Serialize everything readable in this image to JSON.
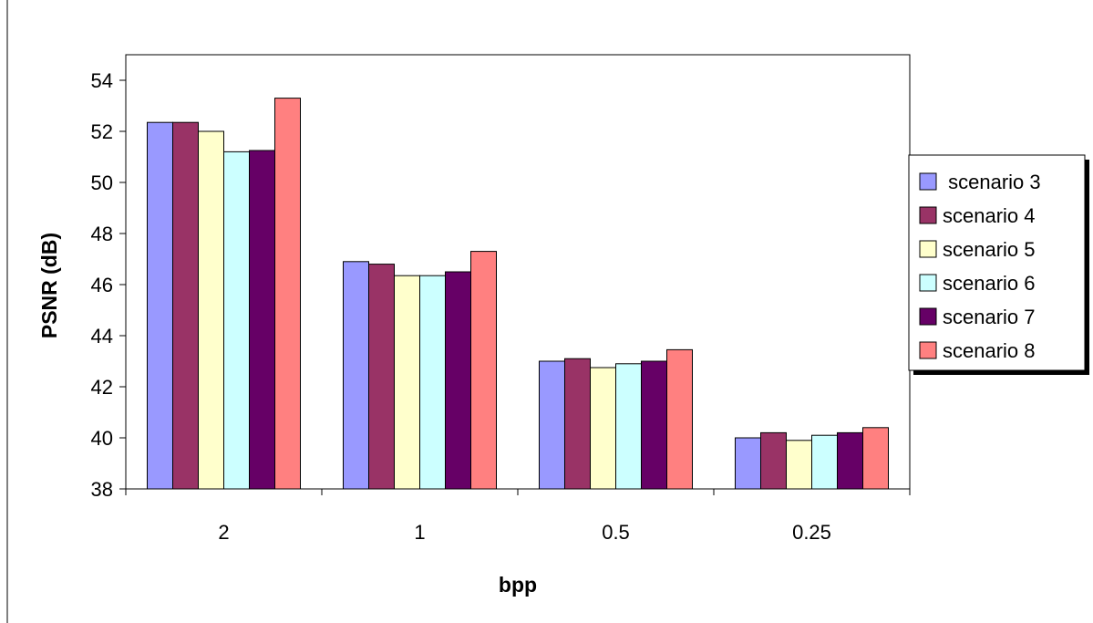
{
  "chart_data": {
    "type": "bar",
    "title": "",
    "xlabel": "bpp",
    "ylabel": "PSNR (dB)",
    "categories": [
      "2",
      "1",
      "0.5",
      "0.25"
    ],
    "ylim": [
      38,
      55
    ],
    "yticks": [
      38,
      40,
      42,
      44,
      46,
      48,
      50,
      52,
      54
    ],
    "grid": false,
    "legend_position": "right",
    "series": [
      {
        "name": " scenario 3",
        "color": "#9999ff",
        "values": [
          52.35,
          46.9,
          43.0,
          40.0
        ]
      },
      {
        "name": "scenario 4",
        "color": "#993366",
        "values": [
          52.35,
          46.8,
          43.1,
          40.2
        ]
      },
      {
        "name": "scenario 5",
        "color": "#ffffcc",
        "values": [
          52.0,
          46.35,
          42.75,
          39.9
        ]
      },
      {
        "name": "scenario 6",
        "color": "#ccffff",
        "values": [
          51.2,
          46.35,
          42.9,
          40.1
        ]
      },
      {
        "name": "scenario 7",
        "color": "#660066",
        "values": [
          51.25,
          46.5,
          43.0,
          40.2
        ]
      },
      {
        "name": "scenario 8",
        "color": "#ff8080",
        "values": [
          53.3,
          47.3,
          43.45,
          40.4
        ]
      }
    ]
  }
}
